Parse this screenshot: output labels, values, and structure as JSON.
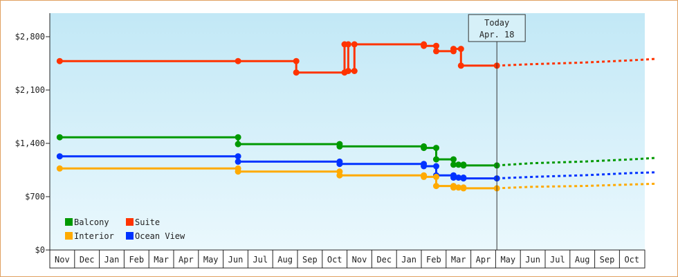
{
  "chart_data": {
    "type": "line",
    "title": "",
    "xlabel": "",
    "ylabel": "",
    "ylim": [
      0,
      3100
    ],
    "yticks": [
      0,
      700,
      1400,
      2100,
      2800
    ],
    "ytick_labels": [
      "$0",
      "$700",
      "$1,400",
      "$2,100",
      "$2,800"
    ],
    "x_unit": "month index (0 = Nov)",
    "months": [
      "Nov",
      "Dec",
      "Jan",
      "Feb",
      "Mar",
      "Apr",
      "May",
      "Jun",
      "Jul",
      "Aug",
      "Sep",
      "Oct",
      "Nov",
      "Dec",
      "Jan",
      "Feb",
      "Mar",
      "Apr",
      "May",
      "Jun",
      "Jul",
      "Aug",
      "Sep",
      "Oct"
    ],
    "today": {
      "label": "Today",
      "date": "Apr. 18",
      "x": 17.55
    },
    "grid": false,
    "legend_position": "bottom-left",
    "series": [
      {
        "name": "Suite",
        "color": "#ff3300",
        "points": [
          [
            -0.1,
            2480
          ],
          [
            7.1,
            2480
          ],
          [
            9.45,
            2480
          ],
          [
            9.45,
            2330
          ],
          [
            11.4,
            2330
          ],
          [
            11.4,
            2700
          ],
          [
            11.55,
            2700
          ],
          [
            11.55,
            2350
          ],
          [
            11.8,
            2350
          ],
          [
            11.8,
            2700
          ],
          [
            14.6,
            2700
          ],
          [
            14.6,
            2680
          ],
          [
            15.1,
            2680
          ],
          [
            15.1,
            2610
          ],
          [
            15.8,
            2610
          ],
          [
            15.8,
            2640
          ],
          [
            16.1,
            2640
          ],
          [
            16.1,
            2420
          ],
          [
            17.55,
            2420
          ]
        ],
        "markers": [
          [
            -0.1,
            2480
          ],
          [
            7.1,
            2480
          ],
          [
            9.45,
            2480
          ],
          [
            9.45,
            2330
          ],
          [
            11.4,
            2330
          ],
          [
            11.4,
            2700
          ],
          [
            11.55,
            2700
          ],
          [
            11.55,
            2350
          ],
          [
            11.8,
            2350
          ],
          [
            11.8,
            2700
          ],
          [
            14.6,
            2700
          ],
          [
            14.6,
            2680
          ],
          [
            15.1,
            2680
          ],
          [
            15.1,
            2610
          ],
          [
            15.8,
            2610
          ],
          [
            15.8,
            2640
          ],
          [
            16.1,
            2640
          ],
          [
            16.1,
            2420
          ],
          [
            17.55,
            2420
          ]
        ],
        "forecast": [
          [
            17.55,
            2420
          ],
          [
            19,
            2440
          ],
          [
            21,
            2460
          ],
          [
            23,
            2490
          ],
          [
            24,
            2510
          ]
        ]
      },
      {
        "name": "Balcony",
        "color": "#009900",
        "points": [
          [
            -0.1,
            1480
          ],
          [
            7.1,
            1480
          ],
          [
            7.1,
            1390
          ],
          [
            11.2,
            1390
          ],
          [
            11.2,
            1360
          ],
          [
            14.6,
            1360
          ],
          [
            14.6,
            1340
          ],
          [
            15.1,
            1340
          ],
          [
            15.1,
            1190
          ],
          [
            15.8,
            1190
          ],
          [
            15.8,
            1120
          ],
          [
            16.2,
            1120
          ],
          [
            16.2,
            1110
          ],
          [
            17.55,
            1110
          ]
        ],
        "markers": [
          [
            -0.1,
            1480
          ],
          [
            7.1,
            1480
          ],
          [
            7.1,
            1390
          ],
          [
            11.2,
            1390
          ],
          [
            11.2,
            1360
          ],
          [
            14.6,
            1360
          ],
          [
            14.6,
            1340
          ],
          [
            15.1,
            1340
          ],
          [
            15.1,
            1190
          ],
          [
            15.8,
            1190
          ],
          [
            15.8,
            1120
          ],
          [
            16.0,
            1120
          ],
          [
            16.2,
            1120
          ],
          [
            16.2,
            1110
          ],
          [
            17.55,
            1110
          ]
        ],
        "forecast": [
          [
            17.55,
            1110
          ],
          [
            19,
            1140
          ],
          [
            21,
            1160
          ],
          [
            23,
            1190
          ],
          [
            24,
            1210
          ]
        ]
      },
      {
        "name": "Ocean View",
        "color": "#0033ff",
        "points": [
          [
            -0.1,
            1230
          ],
          [
            7.1,
            1230
          ],
          [
            7.1,
            1160
          ],
          [
            11.2,
            1160
          ],
          [
            11.2,
            1130
          ],
          [
            14.6,
            1130
          ],
          [
            14.6,
            1100
          ],
          [
            15.1,
            1100
          ],
          [
            15.1,
            980
          ],
          [
            15.8,
            980
          ],
          [
            15.8,
            950
          ],
          [
            16.2,
            950
          ],
          [
            16.2,
            940
          ],
          [
            17.55,
            940
          ]
        ],
        "markers": [
          [
            -0.1,
            1230
          ],
          [
            7.1,
            1230
          ],
          [
            7.1,
            1160
          ],
          [
            11.2,
            1160
          ],
          [
            11.2,
            1130
          ],
          [
            14.6,
            1130
          ],
          [
            14.6,
            1100
          ],
          [
            15.1,
            1100
          ],
          [
            15.1,
            980
          ],
          [
            15.8,
            980
          ],
          [
            15.8,
            950
          ],
          [
            16.0,
            950
          ],
          [
            16.2,
            950
          ],
          [
            16.2,
            940
          ],
          [
            17.55,
            940
          ]
        ],
        "forecast": [
          [
            17.55,
            940
          ],
          [
            19,
            960
          ],
          [
            21,
            980
          ],
          [
            23,
            1010
          ],
          [
            24,
            1020
          ]
        ]
      },
      {
        "name": "Interior",
        "color": "#ffaa00",
        "points": [
          [
            -0.1,
            1070
          ],
          [
            7.1,
            1070
          ],
          [
            7.1,
            1030
          ],
          [
            11.2,
            1030
          ],
          [
            11.2,
            980
          ],
          [
            14.6,
            980
          ],
          [
            14.6,
            960
          ],
          [
            15.1,
            960
          ],
          [
            15.1,
            840
          ],
          [
            15.8,
            840
          ],
          [
            15.8,
            820
          ],
          [
            16.2,
            820
          ],
          [
            16.2,
            810
          ],
          [
            17.55,
            810
          ]
        ],
        "markers": [
          [
            -0.1,
            1070
          ],
          [
            7.1,
            1070
          ],
          [
            7.1,
            1030
          ],
          [
            11.2,
            1030
          ],
          [
            11.2,
            980
          ],
          [
            14.6,
            980
          ],
          [
            14.6,
            960
          ],
          [
            15.1,
            960
          ],
          [
            15.1,
            840
          ],
          [
            15.8,
            840
          ],
          [
            15.8,
            820
          ],
          [
            16.0,
            820
          ],
          [
            16.2,
            820
          ],
          [
            16.2,
            810
          ],
          [
            17.55,
            810
          ]
        ],
        "forecast": [
          [
            17.55,
            810
          ],
          [
            19,
            830
          ],
          [
            21,
            840
          ],
          [
            23,
            860
          ],
          [
            24,
            870
          ]
        ]
      }
    ],
    "legend_order": [
      "Balcony",
      "Suite",
      "Interior",
      "Ocean View"
    ]
  }
}
